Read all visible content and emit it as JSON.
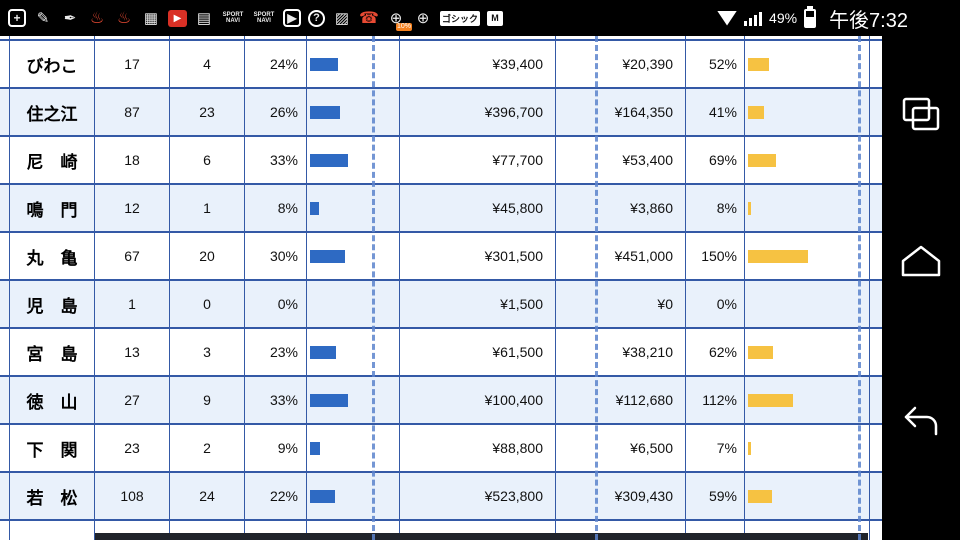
{
  "status_bar": {
    "time": "午後7:32",
    "battery_percent": "49%",
    "icons": [
      {
        "name": "add-icon",
        "glyph": "+",
        "variant": "outline"
      },
      {
        "name": "compose-icon",
        "glyph": "✎",
        "variant": "plain"
      },
      {
        "name": "stamp-icon",
        "glyph": "✒",
        "variant": "plain"
      },
      {
        "name": "red-app-icon-1",
        "glyph": "♨",
        "variant": "red"
      },
      {
        "name": "red-app-icon-2",
        "glyph": "♨",
        "variant": "red"
      },
      {
        "name": "screenshot-icon",
        "glyph": "▦",
        "variant": "plain"
      },
      {
        "name": "video-red-icon",
        "glyph": "▶",
        "variant": "redbox"
      },
      {
        "name": "film-icon",
        "glyph": "▤",
        "variant": "plain"
      },
      {
        "name": "sportsnavi-icon-1",
        "text": "SPORT\nNAVI",
        "variant": "tinytext"
      },
      {
        "name": "sportsnavi-icon-2",
        "text": "SPORT\nNAVI",
        "variant": "tinytext"
      },
      {
        "name": "youtube-icon",
        "glyph": "▶",
        "variant": "outline"
      },
      {
        "name": "help-icon",
        "glyph": "?",
        "variant": "circle"
      },
      {
        "name": "gallery-icon",
        "glyph": "▨",
        "variant": "plain"
      },
      {
        "name": "phone-red-icon",
        "glyph": "☎",
        "variant": "red"
      },
      {
        "name": "globe-10-icon",
        "glyph": "⊕",
        "variant": "plain",
        "badge": "10%"
      },
      {
        "name": "globe-icon",
        "glyph": "⊕",
        "variant": "plain"
      },
      {
        "name": "ime-gothic-icon",
        "text": "ゴシック",
        "variant": "badge"
      },
      {
        "name": "gmail-icon",
        "glyph": "M",
        "variant": "badge"
      }
    ]
  },
  "nav_bar": {
    "buttons": [
      {
        "name": "recents-button"
      },
      {
        "name": "home-button"
      },
      {
        "name": "back-button"
      }
    ]
  },
  "table": {
    "rows": [
      {
        "name": "びわこ",
        "n1": "17",
        "n2": "4",
        "pct1": "24%",
        "pct1_value": 24,
        "amt1": "¥39,400",
        "amt2": "¥20,390",
        "pct2": "52%",
        "pct2_value": 52
      },
      {
        "name": "住之江",
        "n1": "87",
        "n2": "23",
        "pct1": "26%",
        "pct1_value": 26,
        "amt1": "¥396,700",
        "amt2": "¥164,350",
        "pct2": "41%",
        "pct2_value": 41
      },
      {
        "name": "尼　崎",
        "n1": "18",
        "n2": "6",
        "pct1": "33%",
        "pct1_value": 33,
        "amt1": "¥77,700",
        "amt2": "¥53,400",
        "pct2": "69%",
        "pct2_value": 69
      },
      {
        "name": "鳴　門",
        "n1": "12",
        "n2": "1",
        "pct1": "8%",
        "pct1_value": 8,
        "amt1": "¥45,800",
        "amt2": "¥3,860",
        "pct2": "8%",
        "pct2_value": 8
      },
      {
        "name": "丸　亀",
        "n1": "67",
        "n2": "20",
        "pct1": "30%",
        "pct1_value": 30,
        "amt1": "¥301,500",
        "amt2": "¥451,000",
        "pct2": "150%",
        "pct2_value": 150
      },
      {
        "name": "児　島",
        "n1": "1",
        "n2": "0",
        "pct1": "0%",
        "pct1_value": 0,
        "amt1": "¥1,500",
        "amt2": "¥0",
        "pct2": "0%",
        "pct2_value": 0
      },
      {
        "name": "宮　島",
        "n1": "13",
        "n2": "3",
        "pct1": "23%",
        "pct1_value": 23,
        "amt1": "¥61,500",
        "amt2": "¥38,210",
        "pct2": "62%",
        "pct2_value": 62
      },
      {
        "name": "徳　山",
        "n1": "27",
        "n2": "9",
        "pct1": "33%",
        "pct1_value": 33,
        "amt1": "¥100,400",
        "amt2": "¥112,680",
        "pct2": "112%",
        "pct2_value": 112
      },
      {
        "name": "下　関",
        "n1": "23",
        "n2": "2",
        "pct1": "9%",
        "pct1_value": 9,
        "amt1": "¥88,800",
        "amt2": "¥6,500",
        "pct2": "7%",
        "pct2_value": 7
      },
      {
        "name": "若　松",
        "n1": "108",
        "n2": "24",
        "pct1": "22%",
        "pct1_value": 22,
        "amt1": "¥523,800",
        "amt2": "¥309,430",
        "pct2": "59%",
        "pct2_value": 59
      }
    ]
  },
  "colors": {
    "bar_blue": "#2e6ac3",
    "bar_yellow": "#f6c242",
    "grid_border": "#3459a6",
    "row_alt": "#e9f1fb"
  }
}
